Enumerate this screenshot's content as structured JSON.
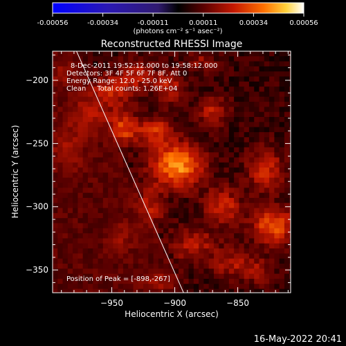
{
  "chart_data": {
    "type": "heatmap",
    "title": "Reconstructed RHESSI Image",
    "xlabel": "Heliocentric X (arcsec)",
    "ylabel": "Heliocentric Y (arcsec)",
    "xlim": [
      -997,
      -808
    ],
    "ylim": [
      -368,
      -177
    ],
    "x_ticks": [
      -950,
      -900,
      -850
    ],
    "y_ticks": [
      -200,
      -250,
      -300,
      -350
    ],
    "colorbar": {
      "ticks": [
        "-0.00056",
        "-0.00034",
        "-0.00011",
        "0.00011",
        "0.00034",
        "0.00056"
      ],
      "range": [
        -0.00056,
        0.00056
      ],
      "unit_label": "(photons cm⁻² s⁻¹ asec⁻²)"
    },
    "annotations": [
      "8-Dec-2011 19:52:12.000 to 19:58:12.000",
      "Detectors: 3F 4F 5F 6F 7F 8F, Att 0",
      "Energy Range: 12.0 - 25.0 keV",
      "Clean     Total counts: 1.26E+04",
      "Position of Peak = [-898,-267]"
    ],
    "peak": {
      "x": -898,
      "y": -267
    },
    "limb_line": [
      [
        -978,
        -177
      ],
      [
        -893,
        -368
      ]
    ],
    "sources": [
      {
        "x": -898,
        "y": -267,
        "amp": 1.0,
        "sx": 14,
        "sy": 12
      },
      {
        "x": -915,
        "y": -240,
        "amp": 0.55,
        "sx": 10,
        "sy": 8
      },
      {
        "x": -940,
        "y": -238,
        "amp": 0.65,
        "sx": 8,
        "sy": 9
      },
      {
        "x": -968,
        "y": -228,
        "amp": 0.55,
        "sx": 11,
        "sy": 10
      },
      {
        "x": -950,
        "y": -208,
        "amp": 0.5,
        "sx": 12,
        "sy": 9
      },
      {
        "x": -930,
        "y": -195,
        "amp": 0.45,
        "sx": 9,
        "sy": 8
      },
      {
        "x": -985,
        "y": -255,
        "amp": 0.45,
        "sx": 9,
        "sy": 12
      },
      {
        "x": -905,
        "y": -205,
        "amp": 0.5,
        "sx": 8,
        "sy": 10
      },
      {
        "x": -870,
        "y": -225,
        "amp": 0.45,
        "sx": 9,
        "sy": 8
      },
      {
        "x": -828,
        "y": -270,
        "amp": 0.55,
        "sx": 10,
        "sy": 12
      },
      {
        "x": -822,
        "y": -315,
        "amp": 0.75,
        "sx": 12,
        "sy": 10
      },
      {
        "x": -862,
        "y": -300,
        "amp": 0.55,
        "sx": 10,
        "sy": 10
      },
      {
        "x": -885,
        "y": -330,
        "amp": 0.45,
        "sx": 12,
        "sy": 10
      },
      {
        "x": -855,
        "y": -345,
        "amp": 0.4,
        "sx": 10,
        "sy": 9
      },
      {
        "x": -920,
        "y": -300,
        "amp": 0.45,
        "sx": 8,
        "sy": 12
      },
      {
        "x": -943,
        "y": -325,
        "amp": 0.35,
        "sx": 7,
        "sy": 9
      },
      {
        "x": -912,
        "y": -360,
        "amp": 0.4,
        "sx": 10,
        "sy": 6
      },
      {
        "x": -835,
        "y": -350,
        "amp": 0.35,
        "sx": 8,
        "sy": 8
      },
      {
        "x": -880,
        "y": -185,
        "amp": 0.3,
        "sx": 8,
        "sy": 6
      },
      {
        "x": -990,
        "y": -195,
        "amp": 0.3,
        "sx": 7,
        "sy": 8
      }
    ],
    "background_level": 0.12
  },
  "footer_timestamp": "16-May-2022 20:41"
}
